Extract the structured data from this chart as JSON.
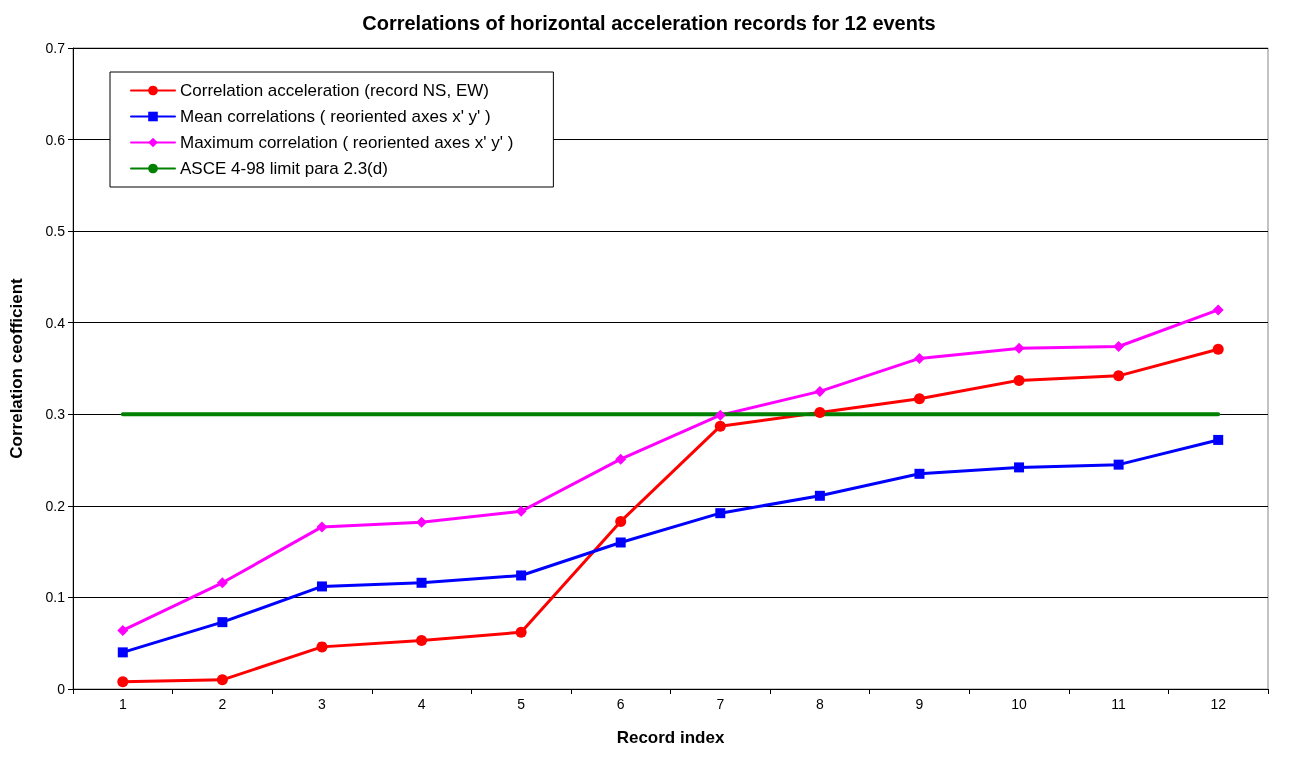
{
  "chart_data": {
    "type": "line",
    "title": "Correlations of horizontal acceleration records for 12 events",
    "xlabel": "Record index",
    "ylabel": "Correlation ceofficient",
    "categories": [
      "1",
      "2",
      "3",
      "4",
      "5",
      "6",
      "7",
      "8",
      "9",
      "10",
      "11",
      "12"
    ],
    "series": [
      {
        "name": "Correlation acceleration (record NS, EW)",
        "color": "#ff0000",
        "marker": "circle",
        "values": [
          0.008,
          0.01,
          0.046,
          0.053,
          0.062,
          0.183,
          0.287,
          0.302,
          0.317,
          0.337,
          0.342,
          0.371
        ]
      },
      {
        "name": "Mean correlations ( reoriented axes x' y' )",
        "color": "#0000ff",
        "marker": "square",
        "values": [
          0.04,
          0.073,
          0.112,
          0.116,
          0.124,
          0.16,
          0.192,
          0.211,
          0.235,
          0.242,
          0.245,
          0.272
        ]
      },
      {
        "name": "Maximum correlation ( reoriented axes x' y' )",
        "color": "#ff00ff",
        "marker": "diamond",
        "values": [
          0.064,
          0.116,
          0.177,
          0.182,
          0.194,
          0.251,
          0.299,
          0.325,
          0.361,
          0.372,
          0.374,
          0.414
        ]
      },
      {
        "name": "ASCE 4-98 limit para 2.3(d)",
        "color": "#008000",
        "marker": "none",
        "values": [
          0.3,
          0.3,
          0.3,
          0.3,
          0.3,
          0.3,
          0.3,
          0.3,
          0.3,
          0.3,
          0.3,
          0.3
        ]
      }
    ],
    "ylim": [
      0,
      0.7
    ],
    "yticks": [
      0,
      0.1,
      0.2,
      0.3,
      0.4,
      0.5,
      0.6,
      0.7
    ],
    "grid": "y",
    "legend": "top left"
  }
}
